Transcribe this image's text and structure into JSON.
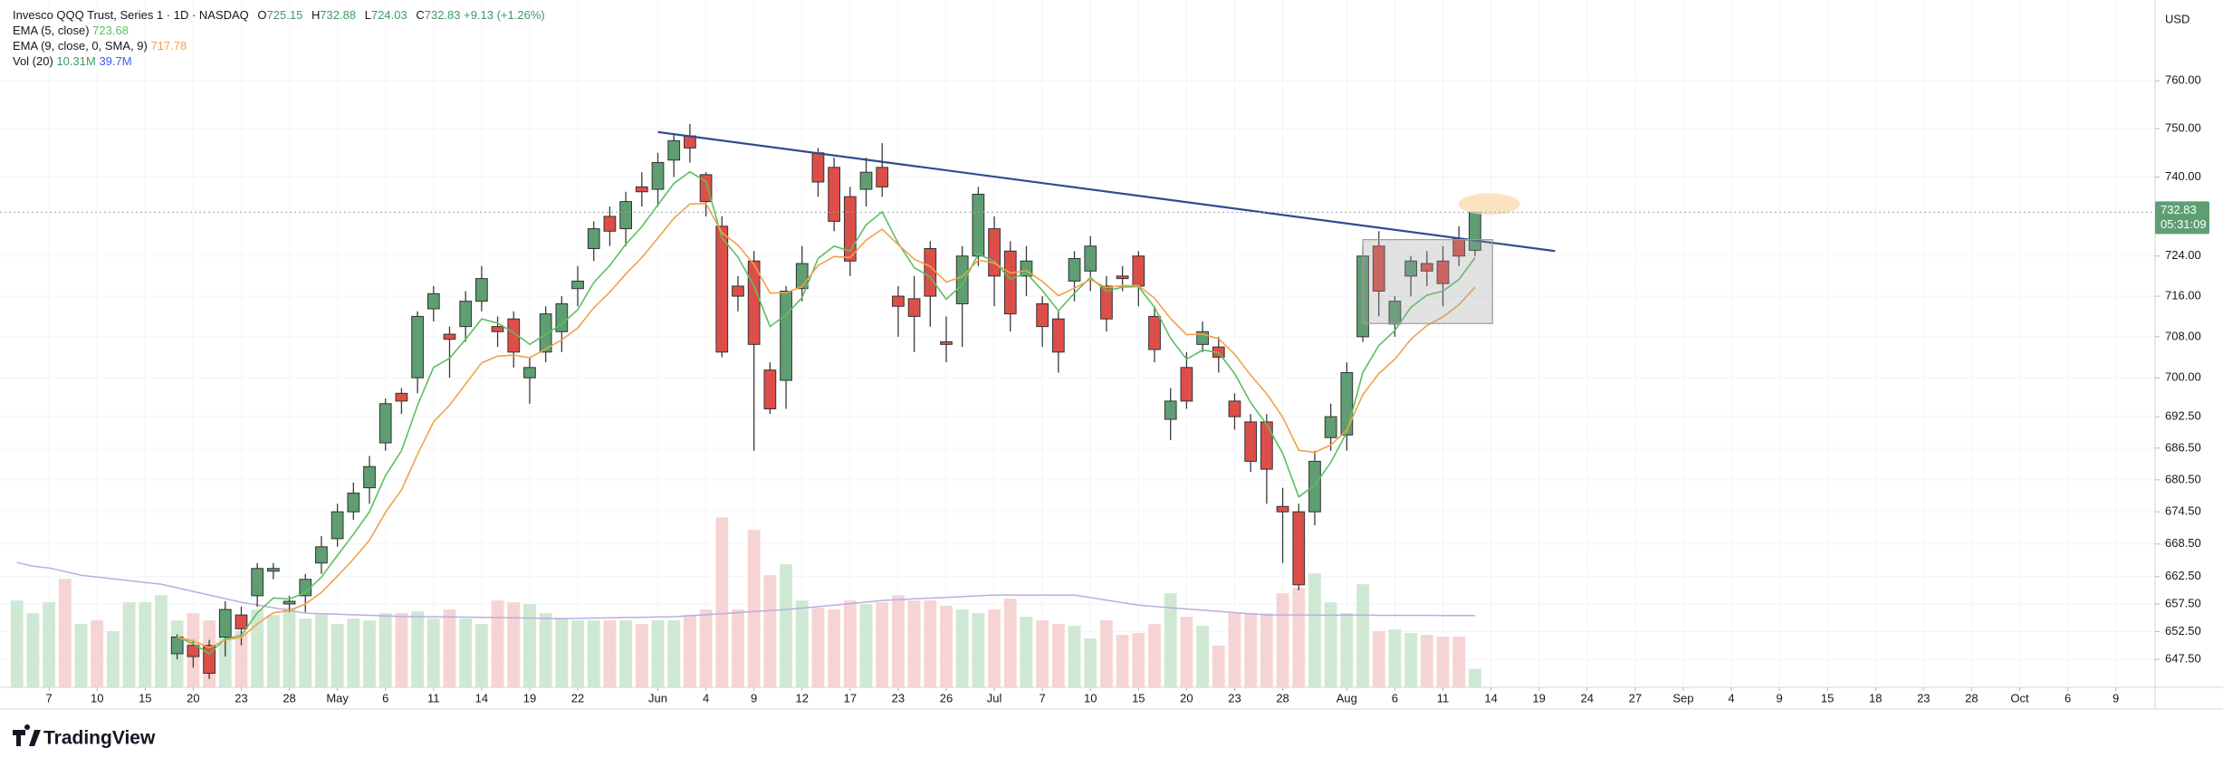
{
  "chart_data": {
    "type": "candlestick",
    "title": "Invesco QQQ Trust, Series 1 · 1D · NASDAQ",
    "ohlc_labels": [
      "O",
      "H",
      "L",
      "C"
    ],
    "change_text": "+9.13 (+1.26%)",
    "currency": "USD",
    "countdown": "05:31:09",
    "brand": "TradingView",
    "log_scale": true,
    "grid": true,
    "up_color": "#5e9e72",
    "down_color": "#de4e49",
    "xlim": [
      -1.06,
      133.45
    ],
    "ylim": [
      642.5,
      777.2
    ],
    "y2lim": [
      0,
      380
    ],
    "yticks": [
      {
        "value": 647.5,
        "label": "647.50"
      },
      {
        "value": 652.5,
        "label": "652.50"
      },
      {
        "value": 657.5,
        "label": "657.50"
      },
      {
        "value": 662.5,
        "label": "662.50"
      },
      {
        "value": 668.5,
        "label": "668.50"
      },
      {
        "value": 674.5,
        "label": "674.50"
      },
      {
        "value": 680.5,
        "label": "680.50"
      },
      {
        "value": 686.5,
        "label": "686.50"
      },
      {
        "value": 692.5,
        "label": "692.50"
      },
      {
        "value": 700,
        "label": "700.00"
      },
      {
        "value": 708,
        "label": "708.00"
      },
      {
        "value": 716,
        "label": "716.00"
      },
      {
        "value": 724,
        "label": "724.00"
      },
      {
        "value": 740,
        "label": "740.00"
      },
      {
        "value": 750,
        "label": "750.00"
      },
      {
        "value": 760,
        "label": "760.00"
      }
    ],
    "xticks": [
      {
        "value": 2,
        "label": "7"
      },
      {
        "value": 5,
        "label": "10"
      },
      {
        "value": 8,
        "label": "15"
      },
      {
        "value": 11,
        "label": "20"
      },
      {
        "value": 14,
        "label": "23"
      },
      {
        "value": 17,
        "label": "28"
      },
      {
        "value": 20,
        "label": "May"
      },
      {
        "value": 23,
        "label": "6"
      },
      {
        "value": 26,
        "label": "11"
      },
      {
        "value": 29,
        "label": "14"
      },
      {
        "value": 32,
        "label": "19"
      },
      {
        "value": 35,
        "label": "22"
      },
      {
        "value": 40,
        "label": "Jun"
      },
      {
        "value": 43,
        "label": "4"
      },
      {
        "value": 46,
        "label": "9"
      },
      {
        "value": 49,
        "label": "12"
      },
      {
        "value": 52,
        "label": "17"
      },
      {
        "value": 55,
        "label": "23"
      },
      {
        "value": 58,
        "label": "26"
      },
      {
        "value": 61,
        "label": "Jul"
      },
      {
        "value": 64,
        "label": "7"
      },
      {
        "value": 67,
        "label": "10"
      },
      {
        "value": 70,
        "label": "15"
      },
      {
        "value": 73,
        "label": "20"
      },
      {
        "value": 76,
        "label": "23"
      },
      {
        "value": 79,
        "label": "28"
      },
      {
        "value": 83,
        "label": "Aug"
      },
      {
        "value": 86,
        "label": "6"
      },
      {
        "value": 89,
        "label": "11"
      },
      {
        "value": 92,
        "label": "14"
      },
      {
        "value": 95,
        "label": "19"
      },
      {
        "value": 98,
        "label": "24"
      },
      {
        "value": 101,
        "label": "27"
      },
      {
        "value": 104,
        "label": "Sep"
      },
      {
        "value": 107,
        "label": "4"
      },
      {
        "value": 110,
        "label": "9"
      },
      {
        "value": 113,
        "label": "15"
      },
      {
        "value": 116,
        "label": "18"
      },
      {
        "value": 119,
        "label": "23"
      },
      {
        "value": 122,
        "label": "28"
      },
      {
        "value": 125,
        "label": "Oct"
      },
      {
        "value": 128,
        "label": "6"
      },
      {
        "value": 131,
        "label": "9"
      }
    ],
    "candles": {
      "open": [
        null,
        null,
        null,
        null,
        null,
        null,
        null,
        null,
        null,
        null,
        648.5,
        650,
        650,
        651.5,
        655.5,
        659,
        663.5,
        657.5,
        659,
        665,
        669.5,
        674.5,
        679,
        687.5,
        697,
        700,
        713.5,
        708.5,
        710,
        715,
        710,
        711.5,
        700,
        705,
        709,
        717.5,
        725.5,
        732,
        729.5,
        738,
        737.5,
        743.5,
        748.5,
        740.5,
        730,
        718,
        723,
        701.5,
        699.5,
        717.5,
        745,
        742,
        736,
        737.5,
        742,
        716,
        715.5,
        725.5,
        707,
        714.5,
        724,
        729.5,
        725,
        720,
        714.5,
        711.5,
        719,
        721,
        718,
        720,
        724,
        712,
        692,
        702,
        706.5,
        706,
        695.5,
        691.5,
        691.5,
        675.5,
        674.5,
        674.5,
        688.5,
        689,
        708,
        726,
        710.5,
        720,
        722.5,
        723,
        727.5,
        725.15
      ],
      "high": [
        null,
        null,
        null,
        null,
        null,
        null,
        null,
        null,
        null,
        null,
        652,
        651,
        651,
        658,
        657,
        665,
        665,
        659,
        663,
        670,
        676,
        680,
        685,
        696,
        698,
        713,
        718,
        710,
        717,
        722,
        712,
        713,
        704,
        714,
        716,
        722,
        731,
        734,
        737,
        741,
        745,
        749,
        751,
        741,
        732,
        720,
        725,
        703,
        718,
        726,
        746,
        744,
        738,
        744,
        747,
        718,
        720,
        727,
        712,
        726,
        738,
        732,
        727,
        726,
        716,
        713,
        725,
        728,
        720,
        722,
        725,
        714,
        698,
        705,
        711,
        708,
        697,
        693,
        693,
        679,
        676,
        686,
        695,
        703,
        726,
        729,
        716,
        724,
        725,
        726,
        730,
        732.88
      ],
      "low": [
        null,
        null,
        null,
        null,
        null,
        null,
        null,
        null,
        null,
        null,
        647.5,
        646,
        644,
        648,
        650,
        657,
        662,
        656,
        656,
        663,
        668,
        673,
        676,
        686,
        693,
        697,
        711,
        700,
        707,
        713,
        706,
        702,
        695,
        703,
        705,
        714,
        723,
        726,
        726,
        734,
        734,
        740,
        743,
        732,
        704,
        713,
        686,
        693,
        694,
        715,
        736,
        729,
        720,
        734,
        736,
        708,
        705,
        710,
        703,
        706,
        722,
        714,
        709,
        716,
        706,
        701,
        715,
        717,
        709,
        717,
        714,
        703,
        688,
        694,
        705,
        701,
        690,
        682,
        676,
        665,
        660,
        672,
        686,
        686,
        707,
        712,
        708,
        716,
        718,
        714,
        722,
        724.03
      ],
      "close": [
        null,
        null,
        null,
        null,
        null,
        null,
        null,
        null,
        null,
        null,
        651.5,
        648,
        645,
        656.5,
        653,
        664,
        664,
        658,
        662,
        668,
        674.5,
        678,
        683,
        695,
        695.5,
        712,
        716.5,
        707.5,
        715,
        719.5,
        709,
        705,
        702,
        712.5,
        714.5,
        719,
        729.5,
        729,
        735,
        737,
        743,
        747.5,
        746,
        735,
        705,
        716,
        706.5,
        694,
        717,
        722.5,
        739,
        731,
        723,
        741,
        738,
        714,
        712,
        716,
        706.5,
        724,
        736.5,
        720,
        712.5,
        723,
        710,
        705,
        723.5,
        726,
        711.5,
        719.5,
        718,
        705.5,
        695.5,
        695.5,
        709,
        704,
        692.5,
        684,
        682.5,
        674.5,
        661,
        684,
        692.5,
        701,
        724,
        717,
        715,
        723,
        721,
        718.5,
        724,
        732.83
      ]
    },
    "series": [
      {
        "name": "EMA (5, close)",
        "color": "#5cc05f",
        "values": [
          null,
          null,
          null,
          null,
          null,
          null,
          null,
          null,
          null,
          null,
          651.5,
          650.3,
          648.5,
          651.2,
          651.8,
          655.9,
          658.6,
          658.4,
          659.6,
          662.4,
          666.4,
          670.3,
          674.5,
          681.3,
          686,
          694.7,
          702,
          703.8,
          707.5,
          711.5,
          710.7,
          708.8,
          706.5,
          708.5,
          710.5,
          713.3,
          718.7,
          722.1,
          726.4,
          729.9,
          734.3,
          738.7,
          741.1,
          739.1,
          727.7,
          723.8,
          718,
          710,
          712.3,
          715.7,
          723.5,
          726,
          725,
          730.3,
          732.9,
          726.6,
          721.7,
          719.8,
          715.4,
          718.3,
          724.4,
          722.9,
          719.4,
          720.6,
          717.1,
          713.1,
          716.6,
          719.7,
          717,
          717.8,
          717.9,
          713.8,
          707.7,
          703.6,
          705.4,
          704.9,
          700.8,
          695.2,
          691,
          685.5,
          677.3,
          679.5,
          683.8,
          689.5,
          701,
          706.3,
          709.2,
          713.8,
          716.2,
          717,
          719.3,
          723.68
        ]
      },
      {
        "name": "EMA (9, close, 0, SMA, 9)",
        "color": "#f0a24a",
        "values": [
          null,
          null,
          null,
          null,
          null,
          null,
          null,
          null,
          null,
          null,
          651.5,
          650.8,
          649.6,
          651,
          651.4,
          653.9,
          655.9,
          656.3,
          657.5,
          659.6,
          662.6,
          665.7,
          669.2,
          674.4,
          678.6,
          685.3,
          691.5,
          694.7,
          698.8,
          702.9,
          704.2,
          704.4,
          703.9,
          705.6,
          707.4,
          709.7,
          713.7,
          716.8,
          720.4,
          723.7,
          727.6,
          731.6,
          734.5,
          734.6,
          728.7,
          726.2,
          722.3,
          716.6,
          716.7,
          717.9,
          722.1,
          723.9,
          723.7,
          727.2,
          729.4,
          726.3,
          723.4,
          721.9,
          718.8,
          719.9,
          723.2,
          722.6,
          720.6,
          721.1,
          718.9,
          716.1,
          717.6,
          719.3,
          717.7,
          718.1,
          718.1,
          715.6,
          711.6,
          708.4,
          708.5,
          707.6,
          704.6,
          700.5,
          696.9,
          692.4,
          686.1,
          685.7,
          687.1,
          689.9,
          696.7,
          700.8,
          703.6,
          707.5,
          710.2,
          711.9,
          714.3,
          717.78
        ]
      }
    ],
    "volume": {
      "name": "Vol (20)",
      "last_label": "10.31M",
      "axis": "y2",
      "values": [
        48,
        41,
        47,
        60,
        35,
        37,
        31,
        47,
        47,
        51,
        37,
        41,
        37,
        39,
        31,
        43,
        40,
        44,
        38,
        41,
        35,
        38,
        37,
        41,
        41,
        42,
        38,
        43,
        38,
        35,
        48,
        47,
        46,
        41,
        38,
        37,
        37,
        37,
        37,
        35,
        37,
        37,
        40,
        43,
        94,
        43,
        87,
        62,
        68,
        48,
        44,
        43,
        48,
        46,
        47,
        51,
        48,
        48,
        45,
        43,
        41,
        43,
        49,
        39,
        37,
        35,
        34,
        27,
        37,
        29,
        30,
        35,
        52,
        39,
        34,
        23,
        41,
        41,
        41,
        52,
        55,
        63,
        47,
        41,
        57,
        31,
        32,
        30,
        29,
        28,
        28,
        10.31
      ],
      "colors": [
        "#cfe8d3",
        "#cfe8d3",
        "#cfe8d3",
        "#f6d4d4",
        "#cfe8d3",
        "#f6d4d4",
        "#cfe8d3",
        "#cfe8d3",
        "#cfe8d3",
        "#cfe8d3",
        "#cfe8d3",
        "#f6d4d4",
        "#f6d4d4",
        "#cfe8d3",
        "#f6d4d4",
        "#cfe8d3",
        "#cfe8d3",
        "#cfe8d3",
        "#cfe8d3",
        "#cfe8d3",
        "#cfe8d3",
        "#cfe8d3",
        "#cfe8d3",
        "#cfe8d3",
        "#f6d4d4",
        "#cfe8d3",
        "#cfe8d3",
        "#f6d4d4",
        "#cfe8d3",
        "#cfe8d3",
        "#f6d4d4",
        "#f6d4d4",
        "#cfe8d3",
        "#cfe8d3",
        "#cfe8d3",
        "#cfe8d3",
        "#cfe8d3",
        "#f6d4d4",
        "#cfe8d3",
        "#f6d4d4",
        "#cfe8d3",
        "#cfe8d3",
        "#f6d4d4",
        "#f6d4d4",
        "#f6d4d4",
        "#f6d4d4",
        "#f6d4d4",
        "#f6d4d4",
        "#cfe8d3",
        "#cfe8d3",
        "#f6d4d4",
        "#f6d4d4",
        "#f6d4d4",
        "#cfe8d3",
        "#f6d4d4",
        "#f6d4d4",
        "#f6d4d4",
        "#f6d4d4",
        "#f6d4d4",
        "#cfe8d3",
        "#cfe8d3",
        "#f6d4d4",
        "#f6d4d4",
        "#cfe8d3",
        "#f6d4d4",
        "#f6d4d4",
        "#cfe8d3",
        "#cfe8d3",
        "#f6d4d4",
        "#f6d4d4",
        "#f6d4d4",
        "#f6d4d4",
        "#cfe8d3",
        "#f6d4d4",
        "#cfe8d3",
        "#f6d4d4",
        "#f6d4d4",
        "#f6d4d4",
        "#f6d4d4",
        "#f6d4d4",
        "#f6d4d4",
        "#cfe8d3",
        "#cfe8d3",
        "#cfe8d3",
        "#cfe8d3",
        "#f6d4d4",
        "#cfe8d3",
        "#cfe8d3",
        "#f6d4d4",
        "#f6d4d4",
        "#f6d4d4",
        "#cfe8d3"
      ],
      "ma": {
        "color": "#b9aee0",
        "last_label": "39.7M",
        "values": [
          69,
          67,
          66,
          64,
          62,
          61,
          60,
          59,
          58,
          57,
          55,
          53,
          51,
          49,
          47,
          45.5,
          44,
          42.5,
          41,
          40.7,
          40.4,
          40.1,
          39.8,
          39.5,
          39.2,
          39,
          39,
          38.9,
          38.8,
          38.7,
          38.6,
          38.4,
          38.3,
          38.1,
          38,
          38.1,
          38.3,
          38.4,
          38.6,
          38.7,
          38.9,
          39,
          39.6,
          40.1,
          40.7,
          41.3,
          41.9,
          42.4,
          43,
          43.8,
          44.6,
          45.4,
          46.2,
          47.1,
          48,
          48.4,
          48.9,
          49.3,
          49.7,
          50.1,
          50.6,
          51,
          51,
          51,
          51,
          51,
          51,
          49.6,
          48.2,
          46.8,
          45.4,
          44.7,
          44,
          43.3,
          42.7,
          42,
          41.3,
          40.7,
          40,
          40,
          40,
          39.9,
          39.9,
          39.9,
          39.9,
          39.8,
          39.8,
          39.8,
          39.8,
          39.7,
          39.7,
          39.7
        ]
      }
    },
    "trendline": {
      "color": "#2f4b8f",
      "x": [
        40,
        96
      ],
      "y": [
        749.3,
        725
      ]
    },
    "rectangle": {
      "color": "#9e9e9e",
      "x": [
        84,
        92.1
      ],
      "y": [
        710.6,
        727.3
      ]
    },
    "highlight": {
      "color": "#f9d9ae",
      "x": 91.9,
      "y": 734.5
    }
  }
}
